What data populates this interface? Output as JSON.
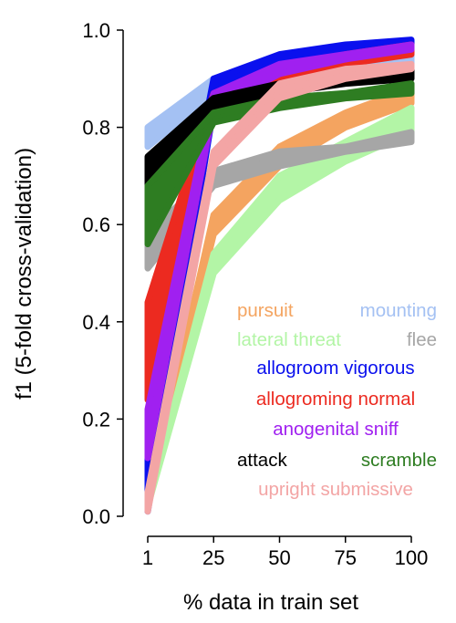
{
  "chart_data": {
    "type": "line",
    "title": "",
    "xlabel": "% data in train set",
    "ylabel": "f1 (5-fold cross-validation)",
    "x": [
      1,
      25,
      50,
      75,
      100
    ],
    "x_ticks": [
      "1",
      "25",
      "50",
      "75",
      "100"
    ],
    "y_ticks": [
      "0.0",
      "0.2",
      "0.4",
      "0.6",
      "0.8",
      "1.0"
    ],
    "ylim": [
      0,
      1
    ],
    "grid": false,
    "legend_position": "lower-right",
    "series": [
      {
        "name": "pursuit",
        "color": "#f4a460",
        "lower": [
          0.02,
          0.58,
          0.72,
          0.8,
          0.85
        ],
        "upper": [
          0.02,
          0.62,
          0.76,
          0.83,
          0.88
        ]
      },
      {
        "name": "mounting",
        "color": "#a4c1f3",
        "lower": [
          0.76,
          0.87,
          0.88,
          0.91,
          0.93
        ],
        "upper": [
          0.8,
          0.9,
          0.9,
          0.93,
          0.95
        ]
      },
      {
        "name": "lateral threat",
        "color": "#b3f5a6",
        "lower": [
          0.02,
          0.5,
          0.65,
          0.73,
          0.79
        ],
        "upper": [
          0.02,
          0.54,
          0.7,
          0.77,
          0.84
        ]
      },
      {
        "name": "flee",
        "color": "#a6a6a6",
        "lower": [
          0.51,
          0.68,
          0.72,
          0.75,
          0.77
        ],
        "upper": [
          0.58,
          0.71,
          0.75,
          0.76,
          0.79
        ]
      },
      {
        "name": "allogroom vigorous",
        "color": "#0a10ee",
        "lower": [
          0.01,
          0.84,
          0.92,
          0.96,
          0.97
        ],
        "upper": [
          0.2,
          0.9,
          0.95,
          0.97,
          0.98
        ]
      },
      {
        "name": "allogroming normal",
        "color": "#ec2a20",
        "lower": [
          0.24,
          0.83,
          0.89,
          0.93,
          0.95
        ],
        "upper": [
          0.44,
          0.87,
          0.92,
          0.95,
          0.97
        ]
      },
      {
        "name": "anogenital sniff",
        "color": "#a020f0",
        "lower": [
          0.12,
          0.84,
          0.91,
          0.94,
          0.96
        ],
        "upper": [
          0.22,
          0.87,
          0.93,
          0.95,
          0.97
        ]
      },
      {
        "name": "attack",
        "color": "#000000",
        "lower": [
          0.67,
          0.84,
          0.87,
          0.89,
          0.9
        ],
        "upper": [
          0.74,
          0.86,
          0.89,
          0.91,
          0.92
        ]
      },
      {
        "name": "scramble",
        "color": "#2e7d22",
        "lower": [
          0.56,
          0.81,
          0.84,
          0.86,
          0.87
        ],
        "upper": [
          0.68,
          0.83,
          0.86,
          0.87,
          0.89
        ]
      },
      {
        "name": "upright submissive",
        "color": "#f3a5a5",
        "lower": [
          0.01,
          0.72,
          0.86,
          0.9,
          0.92
        ],
        "upper": [
          0.05,
          0.75,
          0.89,
          0.92,
          0.93
        ]
      }
    ],
    "legend": [
      [
        "pursuit",
        "mounting"
      ],
      [
        "lateral threat",
        "flee"
      ],
      [
        "allogroom vigorous"
      ],
      [
        "allogroming normal"
      ],
      [
        "anogenital sniff"
      ],
      [
        "attack",
        "scramble"
      ],
      [
        "upright submissive"
      ]
    ]
  }
}
